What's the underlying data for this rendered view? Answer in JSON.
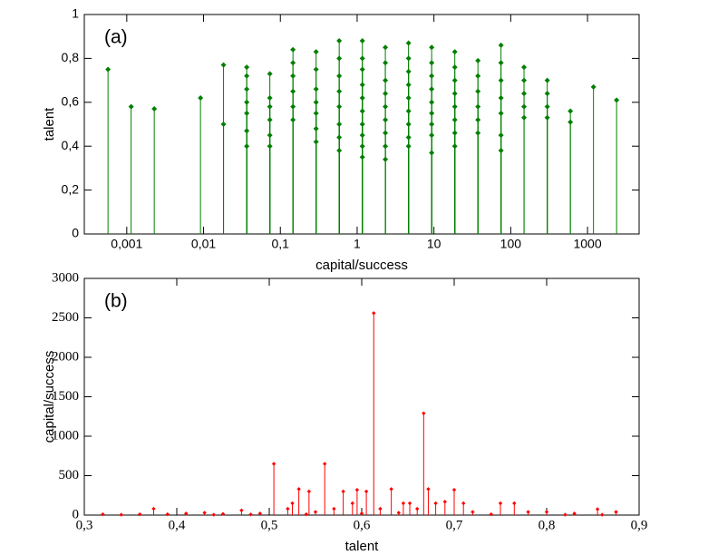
{
  "chart_data": [
    {
      "type": "scatter",
      "annotation": "(a)",
      "x_label": "capital/success",
      "y_label": "talent",
      "log_x": true,
      "stem": true,
      "color": "#008000",
      "xlim": [
        0.00028,
        4700
      ],
      "ylim": [
        0,
        1
      ],
      "xticks": [
        {
          "value": 0.001,
          "label": "0,001"
        },
        {
          "value": 0.01,
          "label": "0,01"
        },
        {
          "value": 0.1,
          "label": "0,1"
        },
        1,
        10,
        100,
        1000
      ],
      "yticks": [
        0,
        {
          "value": 0.2,
          "label": "0,2"
        },
        {
          "value": 0.4,
          "label": "0,4"
        },
        {
          "value": 0.6,
          "label": "0,6"
        },
        {
          "value": 0.8,
          "label": "0,8"
        },
        1
      ],
      "x": [
        0.00057,
        0.00114,
        0.00228,
        0.00912,
        0.0182,
        0.0182,
        0.0365,
        0.0365,
        0.0365,
        0.0365,
        0.0365,
        0.0365,
        0.0365,
        0.073,
        0.073,
        0.073,
        0.073,
        0.073,
        0.073,
        0.146,
        0.146,
        0.146,
        0.146,
        0.146,
        0.146,
        0.292,
        0.292,
        0.292,
        0.292,
        0.292,
        0.292,
        0.292,
        0.584,
        0.584,
        0.584,
        0.584,
        0.584,
        0.584,
        0.584,
        0.584,
        1.17,
        1.17,
        1.17,
        1.17,
        1.17,
        1.17,
        1.17,
        1.17,
        1.17,
        1.17,
        2.33,
        2.33,
        2.33,
        2.33,
        2.33,
        2.33,
        2.33,
        2.33,
        2.33,
        4.67,
        4.67,
        4.67,
        4.67,
        4.67,
        4.67,
        4.67,
        4.67,
        4.67,
        9.34,
        9.34,
        9.34,
        9.34,
        9.34,
        9.34,
        9.34,
        9.34,
        9.34,
        18.7,
        18.7,
        18.7,
        18.7,
        18.7,
        18.7,
        18.7,
        18.7,
        37.4,
        37.4,
        37.4,
        37.4,
        37.4,
        37.4,
        74.7,
        74.7,
        74.7,
        74.7,
        74.7,
        74.7,
        74.7,
        149,
        149,
        149,
        149,
        149,
        299,
        299,
        299,
        299,
        598,
        598,
        1196,
        2391
      ],
      "values": [
        0.75,
        0.58,
        0.57,
        0.62,
        0.77,
        0.5,
        0.76,
        0.72,
        0.66,
        0.6,
        0.55,
        0.47,
        0.4,
        0.73,
        0.62,
        0.58,
        0.52,
        0.45,
        0.4,
        0.84,
        0.78,
        0.72,
        0.65,
        0.58,
        0.52,
        0.83,
        0.75,
        0.66,
        0.6,
        0.55,
        0.48,
        0.42,
        0.88,
        0.8,
        0.72,
        0.65,
        0.58,
        0.5,
        0.44,
        0.38,
        0.88,
        0.8,
        0.75,
        0.68,
        0.62,
        0.56,
        0.5,
        0.45,
        0.4,
        0.35,
        0.85,
        0.78,
        0.7,
        0.64,
        0.58,
        0.52,
        0.46,
        0.4,
        0.34,
        0.87,
        0.8,
        0.74,
        0.68,
        0.62,
        0.56,
        0.5,
        0.44,
        0.4,
        0.85,
        0.78,
        0.72,
        0.66,
        0.6,
        0.55,
        0.5,
        0.45,
        0.37,
        0.83,
        0.76,
        0.7,
        0.64,
        0.58,
        0.52,
        0.46,
        0.4,
        0.79,
        0.72,
        0.65,
        0.58,
        0.52,
        0.46,
        0.86,
        0.78,
        0.7,
        0.62,
        0.55,
        0.45,
        0.38,
        0.76,
        0.7,
        0.64,
        0.58,
        0.53,
        0.7,
        0.64,
        0.58,
        0.53,
        0.56,
        0.51,
        0.67,
        0.61
      ]
    },
    {
      "type": "scatter",
      "annotation": "(b)",
      "x_label": "talent",
      "y_label": "capital/success",
      "log_x": false,
      "stem": true,
      "color": "#ff0000",
      "xlim": [
        0.3,
        0.9
      ],
      "ylim": [
        0,
        3000
      ],
      "xticks": [
        {
          "value": 0.3,
          "label": "0,3"
        },
        {
          "value": 0.4,
          "label": "0,4"
        },
        {
          "value": 0.5,
          "label": "0,5"
        },
        {
          "value": 0.6,
          "label": "0,6"
        },
        {
          "value": 0.7,
          "label": "0,7"
        },
        {
          "value": 0.8,
          "label": "0,8"
        },
        {
          "value": 0.9,
          "label": "0,9"
        }
      ],
      "yticks": [
        0,
        500,
        1000,
        1500,
        2000,
        2500,
        3000
      ],
      "x": [
        0.32,
        0.34,
        0.36,
        0.375,
        0.39,
        0.41,
        0.43,
        0.44,
        0.45,
        0.47,
        0.48,
        0.49,
        0.505,
        0.52,
        0.525,
        0.532,
        0.54,
        0.543,
        0.55,
        0.56,
        0.57,
        0.58,
        0.59,
        0.595,
        0.6,
        0.605,
        0.613,
        0.62,
        0.632,
        0.64,
        0.645,
        0.652,
        0.66,
        0.667,
        0.672,
        0.68,
        0.69,
        0.7,
        0.71,
        0.72,
        0.74,
        0.75,
        0.765,
        0.78,
        0.8,
        0.82,
        0.83,
        0.855,
        0.86,
        0.875
      ],
      "values": [
        10,
        5,
        10,
        80,
        10,
        20,
        30,
        5,
        15,
        60,
        8,
        20,
        650,
        80,
        150,
        330,
        10,
        300,
        40,
        650,
        80,
        300,
        150,
        320,
        20,
        300,
        2560,
        80,
        330,
        30,
        150,
        150,
        80,
        1290,
        330,
        150,
        170,
        320,
        150,
        40,
        10,
        150,
        150,
        40,
        40,
        5,
        20,
        75,
        5,
        40
      ]
    }
  ]
}
